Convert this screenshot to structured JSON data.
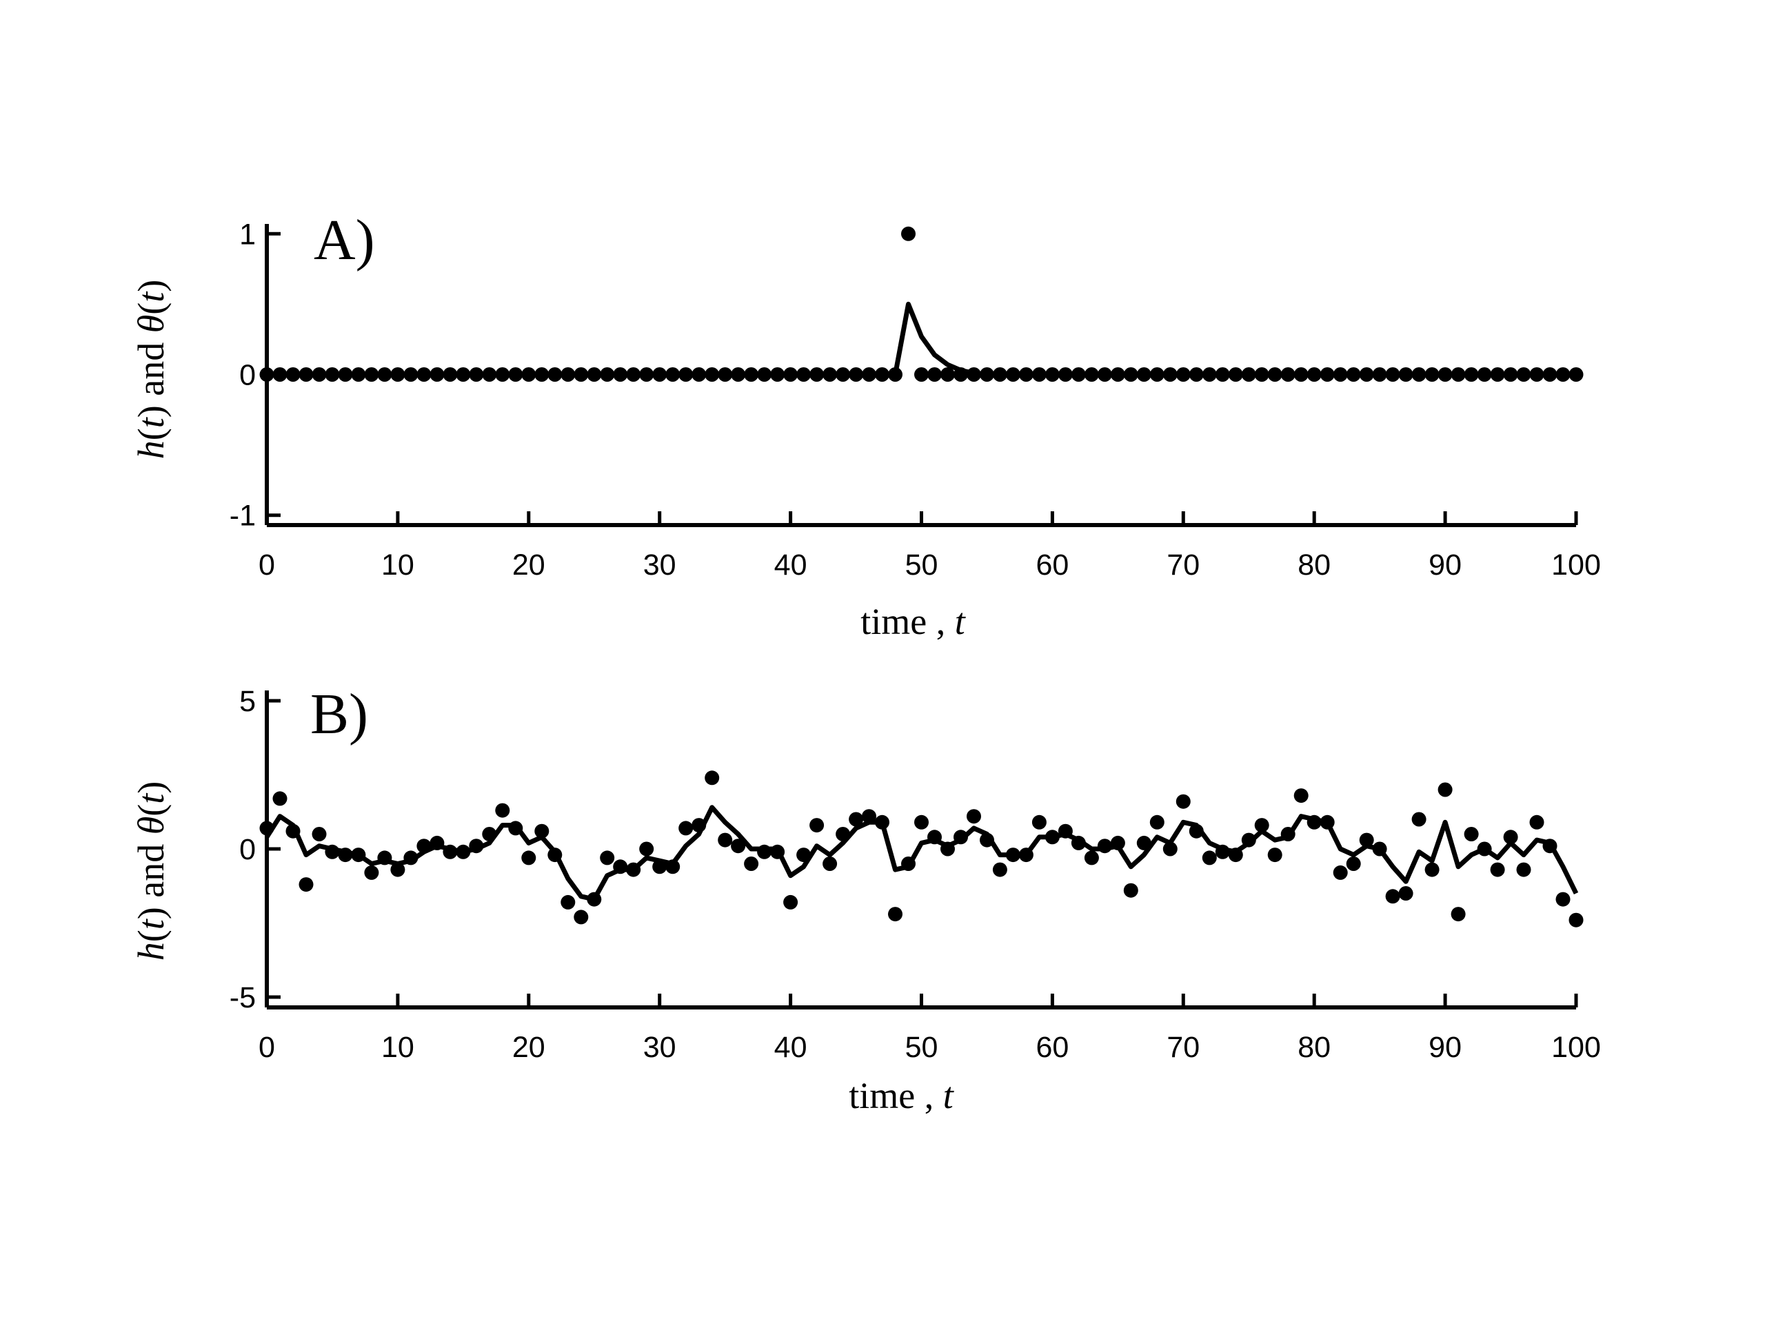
{
  "chart_data": [
    {
      "type": "line",
      "panel_label": "A)",
      "xlabel": "time , t",
      "ylabel": "h(t) and θ(t)",
      "xlim": [
        0,
        100
      ],
      "ylim": [
        -1,
        1
      ],
      "xticks": [
        0,
        10,
        20,
        30,
        40,
        50,
        60,
        70,
        80,
        90,
        100
      ],
      "yticks": [
        -1,
        0,
        1
      ],
      "grid": false,
      "legend": "none",
      "series": [
        {
          "kind": "points",
          "x": [
            0,
            1,
            2,
            3,
            4,
            5,
            6,
            7,
            8,
            9,
            10,
            11,
            12,
            13,
            14,
            15,
            16,
            17,
            18,
            19,
            20,
            21,
            22,
            23,
            24,
            25,
            26,
            27,
            28,
            29,
            30,
            31,
            32,
            33,
            34,
            35,
            36,
            37,
            38,
            39,
            40,
            41,
            42,
            43,
            44,
            45,
            46,
            47,
            48,
            49,
            50,
            51,
            52,
            53,
            54,
            55,
            56,
            57,
            58,
            59,
            60,
            61,
            62,
            63,
            64,
            65,
            66,
            67,
            68,
            69,
            70,
            71,
            72,
            73,
            74,
            75,
            76,
            77,
            78,
            79,
            80,
            81,
            82,
            83,
            84,
            85,
            86,
            87,
            88,
            89,
            90,
            91,
            92,
            93,
            94,
            95,
            96,
            97,
            98,
            99,
            100
          ],
          "y": [
            0,
            0,
            0,
            0,
            0,
            0,
            0,
            0,
            0,
            0,
            0,
            0,
            0,
            0,
            0,
            0,
            0,
            0,
            0,
            0,
            0,
            0,
            0,
            0,
            0,
            0,
            0,
            0,
            0,
            0,
            0,
            0,
            0,
            0,
            0,
            0,
            0,
            0,
            0,
            0,
            0,
            0,
            0,
            0,
            0,
            0,
            0,
            0,
            0,
            1,
            0,
            0,
            0,
            0,
            0,
            0,
            0,
            0,
            0,
            0,
            0,
            0,
            0,
            0,
            0,
            0,
            0,
            0,
            0,
            0,
            0,
            0,
            0,
            0,
            0,
            0,
            0,
            0,
            0,
            0,
            0,
            0,
            0,
            0,
            0,
            0,
            0,
            0,
            0,
            0,
            0,
            0,
            0,
            0,
            0,
            0,
            0,
            0,
            0,
            0,
            0
          ]
        },
        {
          "kind": "line",
          "x": [
            0,
            48,
            49,
            50,
            51,
            52,
            53,
            54,
            55,
            100
          ],
          "y": [
            0,
            0,
            0.5,
            0.27,
            0.14,
            0.07,
            0.03,
            0.01,
            0,
            0
          ]
        }
      ]
    },
    {
      "type": "line",
      "panel_label": "B)",
      "xlabel": "time , t",
      "ylabel": "h(t) and θ(t)",
      "xlim": [
        0,
        100
      ],
      "ylim": [
        -5,
        5
      ],
      "xticks": [
        0,
        10,
        20,
        30,
        40,
        50,
        60,
        70,
        80,
        90,
        100
      ],
      "yticks": [
        -5,
        0,
        5
      ],
      "grid": false,
      "legend": "none",
      "series": [
        {
          "kind": "points",
          "x": [
            0,
            1,
            2,
            3,
            4,
            5,
            6,
            7,
            8,
            9,
            10,
            11,
            12,
            13,
            14,
            15,
            16,
            17,
            18,
            19,
            20,
            21,
            22,
            23,
            24,
            25,
            26,
            27,
            28,
            29,
            30,
            31,
            32,
            33,
            34,
            35,
            36,
            37,
            38,
            39,
            40,
            41,
            42,
            43,
            44,
            45,
            46,
            47,
            48,
            49,
            50,
            51,
            52,
            53,
            54,
            55,
            56,
            57,
            58,
            59,
            60,
            61,
            62,
            63,
            64,
            65,
            66,
            67,
            68,
            69,
            70,
            71,
            72,
            73,
            74,
            75,
            76,
            77,
            78,
            79,
            80,
            81,
            82,
            83,
            84,
            85,
            86,
            87,
            88,
            89,
            90,
            91,
            92,
            93,
            94,
            95,
            96,
            97,
            98,
            99,
            100
          ],
          "y": [
            0.7,
            1.7,
            0.6,
            -1.2,
            0.5,
            -0.1,
            -0.2,
            -0.2,
            -0.8,
            -0.3,
            -0.7,
            -0.3,
            0.1,
            0.2,
            -0.1,
            -0.1,
            0.1,
            0.5,
            1.3,
            0.7,
            -0.3,
            0.6,
            -0.2,
            -1.8,
            -2.3,
            -1.7,
            -0.3,
            -0.6,
            -0.7,
            0.0,
            -0.6,
            -0.6,
            0.7,
            0.8,
            2.4,
            0.3,
            0.1,
            -0.5,
            -0.1,
            -0.1,
            -1.8,
            -0.2,
            0.8,
            -0.5,
            0.5,
            1.0,
            1.1,
            0.9,
            -2.2,
            -0.5,
            0.9,
            0.4,
            0.0,
            0.4,
            1.1,
            0.3,
            -0.7,
            -0.2,
            -0.2,
            0.9,
            0.4,
            0.6,
            0.2,
            -0.3,
            0.1,
            0.2,
            -1.4,
            0.2,
            0.9,
            0.0,
            1.6,
            0.6,
            -0.3,
            -0.1,
            -0.2,
            0.3,
            0.8,
            -0.2,
            0.5,
            1.8,
            0.9,
            0.9,
            -0.8,
            -0.5,
            0.3,
            0.0,
            -1.6,
            -1.5,
            1.0,
            -0.7,
            2.0,
            -2.2,
            0.5,
            0.0,
            -0.7,
            0.4,
            -0.7,
            0.9,
            0.1,
            -1.7,
            -2.4
          ]
        },
        {
          "kind": "line",
          "x": [
            0,
            1,
            2,
            3,
            4,
            5,
            6,
            7,
            8,
            9,
            10,
            11,
            12,
            13,
            14,
            15,
            16,
            17,
            18,
            19,
            20,
            21,
            22,
            23,
            24,
            25,
            26,
            27,
            28,
            29,
            30,
            31,
            32,
            33,
            34,
            35,
            36,
            37,
            38,
            39,
            40,
            41,
            42,
            43,
            44,
            45,
            46,
            47,
            48,
            49,
            50,
            51,
            52,
            53,
            54,
            55,
            56,
            57,
            58,
            59,
            60,
            61,
            62,
            63,
            64,
            65,
            66,
            67,
            68,
            69,
            70,
            71,
            72,
            73,
            74,
            75,
            76,
            77,
            78,
            79,
            80,
            81,
            82,
            83,
            84,
            85,
            86,
            87,
            88,
            89,
            90,
            91,
            92,
            93,
            94,
            95,
            96,
            97,
            98,
            99,
            100
          ],
          "y": [
            0.4,
            1.1,
            0.8,
            -0.2,
            0.1,
            0.0,
            -0.1,
            -0.2,
            -0.5,
            -0.4,
            -0.5,
            -0.4,
            -0.1,
            0.1,
            0.0,
            -0.1,
            0.0,
            0.2,
            0.8,
            0.8,
            0.2,
            0.4,
            -0.1,
            -1.0,
            -1.6,
            -1.7,
            -0.9,
            -0.7,
            -0.7,
            -0.3,
            -0.4,
            -0.5,
            0.1,
            0.5,
            1.4,
            0.9,
            0.5,
            0.0,
            0.0,
            0.0,
            -0.9,
            -0.6,
            0.1,
            -0.2,
            0.2,
            0.7,
            0.9,
            0.9,
            -0.7,
            -0.6,
            0.2,
            0.3,
            0.1,
            0.3,
            0.7,
            0.5,
            -0.2,
            -0.2,
            -0.2,
            0.4,
            0.4,
            0.5,
            0.3,
            0.0,
            0.0,
            0.1,
            -0.6,
            -0.2,
            0.4,
            0.2,
            0.9,
            0.8,
            0.2,
            0.0,
            -0.1,
            0.2,
            0.6,
            0.3,
            0.4,
            1.1,
            1.0,
            0.9,
            0.0,
            -0.2,
            0.1,
            0.0,
            -0.6,
            -1.1,
            -0.1,
            -0.4,
            0.9,
            -0.6,
            -0.2,
            0.0,
            -0.3,
            0.2,
            -0.2,
            0.3,
            0.2,
            -0.6,
            -1.5
          ]
        }
      ]
    }
  ]
}
